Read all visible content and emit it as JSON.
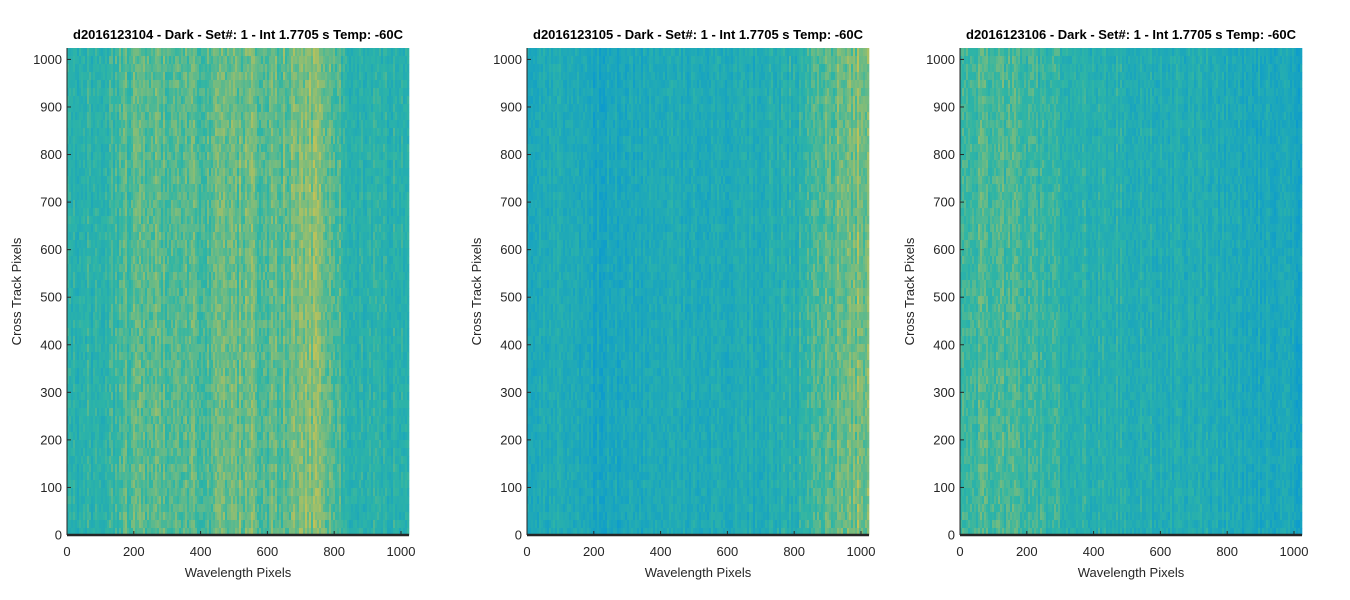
{
  "colors": {
    "low": "#0a99d0",
    "mid": "#2fb5a5",
    "high": "#e3c545",
    "axis": "#262626"
  },
  "chart_data": [
    {
      "type": "heatmap",
      "title": "d2016123104 - Dark - Set#: 1 - Int 1.7705 s Temp: -60C",
      "xlabel": "Wavelength Pixels",
      "ylabel": "Cross Track Pixels",
      "xlim": [
        0,
        1024
      ],
      "ylim": [
        0,
        1024
      ],
      "xticks": [
        0,
        200,
        400,
        600,
        800,
        1000
      ],
      "yticks": [
        0,
        100,
        200,
        300,
        400,
        500,
        600,
        700,
        800,
        900,
        1000
      ],
      "colormap": "parula",
      "column_profile": {
        "x": [
          0,
          100,
          200,
          300,
          400,
          500,
          550,
          600,
          700,
          750,
          800,
          850,
          900,
          1024
        ],
        "level": [
          0.42,
          0.45,
          0.6,
          0.62,
          0.58,
          0.66,
          0.68,
          0.6,
          0.68,
          0.74,
          0.6,
          0.45,
          0.42,
          0.4
        ]
      }
    },
    {
      "type": "heatmap",
      "title": "d2016123105 - Dark - Set#: 1 - Int 1.7705 s Temp: -60C",
      "xlabel": "Wavelength Pixels",
      "ylabel": "Cross Track Pixels",
      "xlim": [
        0,
        1024
      ],
      "ylim": [
        0,
        1024
      ],
      "xticks": [
        0,
        200,
        400,
        600,
        800,
        1000
      ],
      "yticks": [
        0,
        100,
        200,
        300,
        400,
        500,
        600,
        700,
        800,
        900,
        1000
      ],
      "colormap": "parula",
      "column_profile": {
        "x": [
          0,
          100,
          200,
          300,
          400,
          500,
          600,
          700,
          800,
          850,
          900,
          950,
          1024
        ],
        "level": [
          0.34,
          0.3,
          0.22,
          0.26,
          0.32,
          0.3,
          0.3,
          0.34,
          0.4,
          0.5,
          0.62,
          0.7,
          0.72
        ]
      }
    },
    {
      "type": "heatmap",
      "title": "d2016123106 - Dark - Set#: 1 - Int 1.7705 s Temp: -60C",
      "xlabel": "Wavelength Pixels",
      "ylabel": "Cross Track Pixels",
      "xlim": [
        0,
        1024
      ],
      "ylim": [
        0,
        1024
      ],
      "xticks": [
        0,
        200,
        400,
        600,
        800,
        1000
      ],
      "yticks": [
        0,
        100,
        200,
        300,
        400,
        500,
        600,
        700,
        800,
        900,
        1000
      ],
      "colormap": "parula",
      "column_profile": {
        "x": [
          0,
          100,
          200,
          300,
          400,
          500,
          600,
          700,
          800,
          900,
          1024
        ],
        "level": [
          0.55,
          0.58,
          0.5,
          0.44,
          0.4,
          0.38,
          0.36,
          0.34,
          0.3,
          0.26,
          0.22
        ]
      }
    }
  ]
}
